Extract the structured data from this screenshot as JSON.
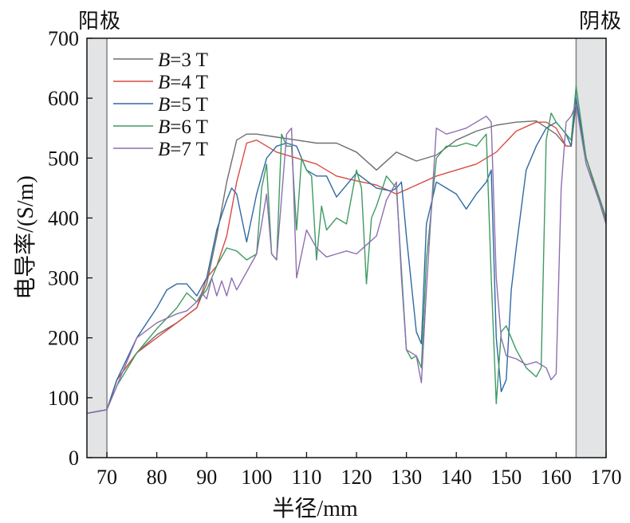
{
  "chart_data": {
    "type": "line",
    "title": "",
    "xlabel": "半径/mm",
    "ylabel": "电导率/(S/m)",
    "xlim": [
      66,
      170
    ],
    "ylim": [
      0,
      700
    ],
    "xticks": [
      70,
      80,
      90,
      100,
      110,
      120,
      130,
      140,
      150,
      160,
      170
    ],
    "yticks": [
      0,
      100,
      200,
      300,
      400,
      500,
      600,
      700
    ],
    "grid": false,
    "legend_position": "top-left",
    "regions": [
      {
        "label": "阳极",
        "x_range": [
          66,
          70
        ],
        "color": "#e3e4e6"
      },
      {
        "label": "阴极",
        "x_range": [
          164,
          170
        ],
        "color": "#e3e4e6"
      }
    ],
    "series": [
      {
        "name": "B=3 T",
        "label_var": "B",
        "label_rest": "=3 T",
        "color": "#6e6e6e",
        "x": [
          66,
          70,
          72,
          76,
          80,
          84,
          88,
          90,
          92,
          94,
          96,
          98,
          100,
          104,
          108,
          112,
          116,
          120,
          124,
          128,
          132,
          136,
          140,
          144,
          148,
          152,
          156,
          160,
          162,
          163,
          164,
          166,
          170
        ],
        "y": [
          74,
          80,
          130,
          175,
          205,
          225,
          250,
          290,
          370,
          460,
          530,
          540,
          540,
          535,
          530,
          525,
          525,
          510,
          480,
          510,
          495,
          505,
          530,
          545,
          555,
          560,
          562,
          540,
          520,
          520,
          590,
          500,
          390
        ]
      },
      {
        "name": "B=4 T",
        "label_var": "B",
        "label_rest": "=4 T",
        "color": "#d94b43",
        "x": [
          66,
          70,
          72,
          76,
          80,
          84,
          88,
          90,
          92,
          94,
          96,
          98,
          100,
          104,
          108,
          112,
          116,
          120,
          124,
          128,
          132,
          136,
          140,
          144,
          148,
          152,
          156,
          158,
          160,
          162,
          163,
          164,
          166,
          170
        ],
        "y": [
          74,
          80,
          130,
          175,
          200,
          225,
          250,
          300,
          320,
          370,
          460,
          525,
          530,
          510,
          500,
          490,
          470,
          462,
          455,
          440,
          455,
          470,
          480,
          490,
          510,
          545,
          560,
          560,
          550,
          520,
          520,
          595,
          500,
          395
        ]
      },
      {
        "name": "B=5 T",
        "label_var": "B",
        "label_rest": "=5 T",
        "color": "#2f6aa3",
        "x": [
          66,
          70,
          72,
          76,
          80,
          82,
          84,
          86,
          88,
          90,
          92,
          94,
          95,
          96,
          98,
          100,
          102,
          104,
          106,
          108,
          110,
          112,
          114,
          116,
          118,
          120,
          124,
          127,
          128,
          129,
          130,
          132,
          133,
          134,
          136,
          138,
          140,
          142,
          144,
          146,
          147,
          148,
          149,
          150,
          151,
          152,
          154,
          156,
          158,
          160,
          162,
          163,
          164,
          166,
          170
        ],
        "y": [
          74,
          80,
          130,
          200,
          250,
          280,
          290,
          290,
          270,
          300,
          380,
          430,
          450,
          440,
          360,
          440,
          500,
          520,
          525,
          520,
          480,
          470,
          470,
          435,
          455,
          475,
          450,
          445,
          450,
          460,
          370,
          210,
          190,
          390,
          460,
          450,
          440,
          415,
          440,
          460,
          480,
          200,
          110,
          130,
          280,
          350,
          480,
          520,
          550,
          560,
          540,
          520,
          600,
          500,
          400
        ]
      },
      {
        "name": "B=6 T",
        "label_var": "B",
        "label_rest": "=6 T",
        "color": "#3f9a63",
        "x": [
          66,
          70,
          72,
          76,
          80,
          84,
          86,
          88,
          90,
          92,
          94,
          96,
          98,
          100,
          101,
          102,
          103,
          104,
          105,
          106,
          107,
          108,
          109,
          110,
          111,
          112,
          113,
          114,
          116,
          118,
          120,
          121,
          122,
          123,
          124,
          126,
          128,
          130,
          131,
          132,
          133,
          134,
          136,
          138,
          140,
          142,
          144,
          146,
          147,
          148,
          149,
          150,
          152,
          154,
          156,
          157,
          158,
          159,
          160,
          162,
          163,
          164,
          166,
          170
        ],
        "y": [
          74,
          80,
          120,
          175,
          215,
          250,
          275,
          260,
          280,
          320,
          350,
          345,
          330,
          340,
          450,
          490,
          340,
          330,
          540,
          520,
          520,
          380,
          500,
          480,
          470,
          330,
          420,
          380,
          400,
          390,
          480,
          450,
          290,
          400,
          420,
          470,
          450,
          180,
          165,
          170,
          150,
          330,
          500,
          520,
          520,
          525,
          520,
          540,
          300,
          90,
          210,
          220,
          180,
          150,
          135,
          150,
          530,
          575,
          560,
          540,
          530,
          620,
          500,
          400
        ]
      },
      {
        "name": "B=7 T",
        "label_var": "B",
        "label_rest": "=7 T",
        "color": "#8e6fb0",
        "x": [
          66,
          70,
          72,
          76,
          80,
          84,
          86,
          88,
          89,
          90,
          91,
          92,
          93,
          94,
          95,
          96,
          98,
          100,
          102,
          103,
          104,
          106,
          107,
          108,
          110,
          112,
          114,
          116,
          118,
          120,
          122,
          124,
          126,
          127,
          128,
          129,
          130,
          132,
          133,
          134,
          136,
          138,
          140,
          142,
          144,
          146,
          147,
          148,
          149,
          150,
          152,
          154,
          156,
          158,
          159,
          160,
          161,
          162,
          163,
          164,
          166,
          170
        ],
        "y": [
          74,
          80,
          120,
          200,
          225,
          240,
          245,
          260,
          275,
          265,
          300,
          270,
          295,
          270,
          300,
          280,
          310,
          340,
          440,
          340,
          330,
          540,
          550,
          300,
          380,
          350,
          335,
          340,
          345,
          340,
          355,
          370,
          430,
          445,
          460,
          300,
          180,
          170,
          125,
          280,
          550,
          540,
          545,
          550,
          560,
          570,
          560,
          300,
          200,
          170,
          165,
          155,
          160,
          150,
          130,
          140,
          450,
          560,
          570,
          590,
          490,
          395
        ]
      }
    ]
  }
}
